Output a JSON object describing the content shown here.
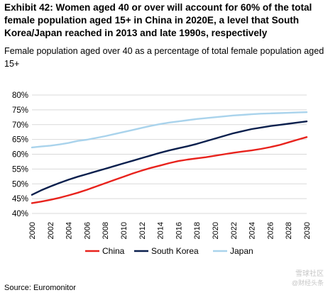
{
  "title": "Exhibit 42: Women aged 40 or over will account for 60% of the total female population aged 15+ in China in 2020E, a level that South Korea/Japan reached in 2013 and late 1990s, respectively",
  "subtitle": "Female population aged over 40 as a percentage of total female population aged 15+",
  "source": "Source: Euromonitor",
  "watermark": {
    "line1": "雪球社区",
    "line2": "@财经头条"
  },
  "colors": {
    "china": "#e8221c",
    "south_korea": "#0a1f4d",
    "japan": "#a9d3ec",
    "grid": "#d9d9d9"
  },
  "chart_data": {
    "type": "line",
    "title": "",
    "xlabel": "",
    "ylabel": "",
    "x": [
      2000,
      2001,
      2002,
      2003,
      2004,
      2005,
      2006,
      2007,
      2008,
      2009,
      2010,
      2011,
      2012,
      2013,
      2014,
      2015,
      2016,
      2017,
      2018,
      2019,
      2020,
      2021,
      2022,
      2023,
      2024,
      2025,
      2026,
      2027,
      2028,
      2029,
      2030
    ],
    "x_tick_labels": [
      "2000",
      "2002",
      "2004",
      "2006",
      "2008",
      "2010",
      "2012",
      "2014",
      "2016",
      "2018",
      "2020",
      "2022",
      "2024",
      "2026",
      "2028",
      "2030"
    ],
    "ylim": [
      40,
      80
    ],
    "y_ticks": [
      40,
      45,
      50,
      55,
      60,
      65,
      70,
      75,
      80
    ],
    "y_tick_labels": [
      "40%",
      "45%",
      "50%",
      "55%",
      "60%",
      "65%",
      "70%",
      "75%",
      "80%"
    ],
    "grid": "horizontal",
    "legend_position": "bottom",
    "series": [
      {
        "name": "China",
        "color": "#e8221c",
        "values": [
          43.5,
          44.0,
          44.6,
          45.3,
          46.1,
          47.0,
          48.0,
          49.1,
          50.2,
          51.3,
          52.4,
          53.5,
          54.5,
          55.4,
          56.2,
          57.0,
          57.7,
          58.2,
          58.6,
          59.0,
          59.5,
          60.0,
          60.5,
          60.9,
          61.3,
          61.8,
          62.4,
          63.1,
          64.0,
          64.9,
          65.8
        ]
      },
      {
        "name": "South Korea",
        "color": "#0a1f4d",
        "values": [
          46.3,
          47.8,
          49.1,
          50.3,
          51.4,
          52.4,
          53.3,
          54.2,
          55.1,
          56.0,
          56.9,
          57.8,
          58.7,
          59.6,
          60.5,
          61.3,
          62.0,
          62.7,
          63.5,
          64.4,
          65.3,
          66.2,
          67.1,
          67.8,
          68.5,
          69.0,
          69.5,
          69.9,
          70.3,
          70.7,
          71.1
        ]
      },
      {
        "name": "Japan",
        "color": "#a9d3ec",
        "values": [
          62.3,
          62.6,
          62.9,
          63.3,
          63.8,
          64.5,
          64.9,
          65.5,
          66.1,
          66.8,
          67.5,
          68.2,
          68.9,
          69.6,
          70.2,
          70.7,
          71.1,
          71.5,
          71.9,
          72.2,
          72.5,
          72.8,
          73.1,
          73.3,
          73.5,
          73.7,
          73.8,
          73.9,
          74.0,
          74.1,
          74.2
        ]
      }
    ]
  }
}
